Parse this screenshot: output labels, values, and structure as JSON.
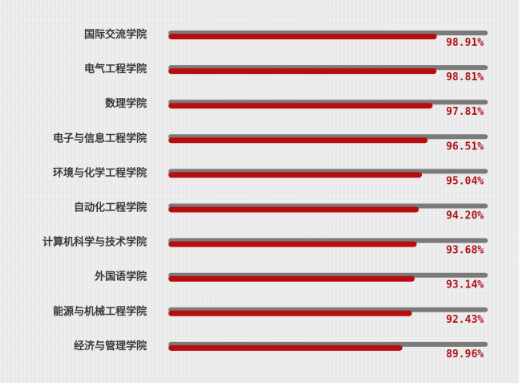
{
  "chart_data": {
    "type": "bar",
    "orientation": "horizontal",
    "categories": [
      "国际交流学院",
      "电气工程学院",
      "数理学院",
      "电子与信息工程学院",
      "环境与化学工程学院",
      "自动化工程学院",
      "计算机科学与技术学院",
      "外国语学院",
      "能源与机械工程学院",
      "经济与管理学院"
    ],
    "values": [
      98.91,
      98.81,
      97.81,
      96.51,
      95.04,
      94.2,
      93.68,
      93.14,
      92.43,
      89.96
    ],
    "value_labels": [
      "98.91%",
      "98.81%",
      "97.81%",
      "96.51%",
      "95.04%",
      "94.20%",
      "93.68%",
      "93.14%",
      "92.43%",
      "89.96%"
    ],
    "unit": "%",
    "colors": {
      "bar": "#b80c10",
      "track": "#7a7a7a",
      "value_text": "#b0121a",
      "label_text": "#3a3a3a"
    },
    "grid": false,
    "legend": "none"
  }
}
